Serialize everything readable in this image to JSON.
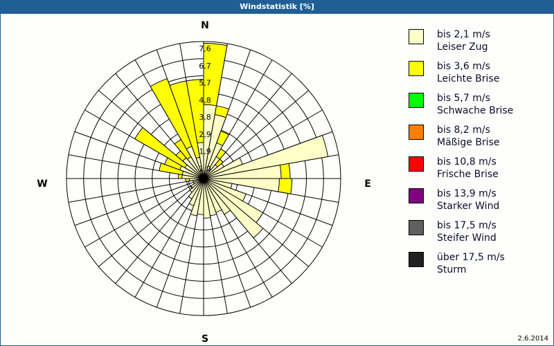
{
  "title": "Windstatistik [%]",
  "date": "2.6.2014",
  "compass": {
    "n": "N",
    "e": "E",
    "s": "S",
    "w": "W"
  },
  "legend": [
    {
      "line1": "bis 2,1 m/s",
      "line2": "Leiser Zug",
      "color": "#ffffc8"
    },
    {
      "line1": "bis 3,6 m/s",
      "line2": "Leichte Brise",
      "color": "#ffff00"
    },
    {
      "line1": "bis 5,7 m/s",
      "line2": "Schwache Brise",
      "color": "#00ff00"
    },
    {
      "line1": "bis 8,2 m/s",
      "line2": "Mäßige Brise",
      "color": "#ff8000"
    },
    {
      "line1": "bis 10,8 m/s",
      "line2": "Frische Brise",
      "color": "#ff0000"
    },
    {
      "line1": "bis 13,9 m/s",
      "line2": "Starker Wind",
      "color": "#800080"
    },
    {
      "line1": "bis 17,5 m/s",
      "line2": "Steifer Wind",
      "color": "#606060"
    },
    {
      "line1": "über 17,5 m/s",
      "line2": "Sturm",
      "color": "#202020"
    }
  ],
  "chart_data": {
    "type": "wind-rose",
    "title": "Windstatistik [%]",
    "unit": "%",
    "ring_labels": [
      "1,0",
      "1,9",
      "2,9",
      "3,8",
      "4,8",
      "5,7",
      "6,7",
      "7,6"
    ],
    "rmax": 7.6,
    "sector_width_deg": 10,
    "series": [
      "bis 2,1 m/s",
      "bis 3,6 m/s"
    ],
    "sectors": [
      {
        "dir": 0,
        "light": 4.1,
        "total": 7.5
      },
      {
        "dir": 10,
        "light": 3.6,
        "total": 4.1
      },
      {
        "dir": 20,
        "light": 2.1,
        "total": 2.8
      },
      {
        "dir": 30,
        "light": 1.4,
        "total": 1.9
      },
      {
        "dir": 40,
        "light": 1.0,
        "total": 1.4
      },
      {
        "dir": 50,
        "light": 1.3,
        "total": 1.3
      },
      {
        "dir": 60,
        "light": 2.3,
        "total": 2.3
      },
      {
        "dir": 70,
        "light": 7.0,
        "total": 7.0
      },
      {
        "dir": 80,
        "light": 4.3,
        "total": 4.8
      },
      {
        "dir": 90,
        "light": 4.2,
        "total": 4.9
      },
      {
        "dir": 100,
        "light": 1.6,
        "total": 1.6
      },
      {
        "dir": 110,
        "light": 2.5,
        "total": 2.5
      },
      {
        "dir": 120,
        "light": 3.8,
        "total": 3.8
      },
      {
        "dir": 130,
        "light": 4.3,
        "total": 4.3
      },
      {
        "dir": 140,
        "light": 2.3,
        "total": 2.3
      },
      {
        "dir": 150,
        "light": 2.0,
        "total": 2.0
      },
      {
        "dir": 160,
        "light": 2.1,
        "total": 2.1
      },
      {
        "dir": 170,
        "light": 2.2,
        "total": 2.2
      },
      {
        "dir": 180,
        "light": 2.0,
        "total": 2.0
      },
      {
        "dir": 190,
        "light": 2.1,
        "total": 2.1
      },
      {
        "dir": 200,
        "light": 1.6,
        "total": 1.6
      },
      {
        "dir": 210,
        "light": 1.3,
        "total": 1.3
      },
      {
        "dir": 220,
        "light": 1.0,
        "total": 1.0
      },
      {
        "dir": 230,
        "light": 0.8,
        "total": 0.8
      },
      {
        "dir": 240,
        "light": 0.6,
        "total": 0.6
      },
      {
        "dir": 250,
        "light": 0.6,
        "total": 0.6
      },
      {
        "dir": 260,
        "light": 0.8,
        "total": 1.0
      },
      {
        "dir": 270,
        "light": 1.2,
        "total": 1.4
      },
      {
        "dir": 280,
        "light": 1.2,
        "total": 2.5
      },
      {
        "dir": 290,
        "light": 1.4,
        "total": 2.3
      },
      {
        "dir": 300,
        "light": 1.2,
        "total": 4.4
      },
      {
        "dir": 310,
        "light": 1.5,
        "total": 2.0
      },
      {
        "dir": 320,
        "light": 1.4,
        "total": 2.5
      },
      {
        "dir": 330,
        "light": 1.9,
        "total": 5.9
      },
      {
        "dir": 340,
        "light": 1.2,
        "total": 5.5
      },
      {
        "dir": 350,
        "light": 2.0,
        "total": 5.5
      }
    ]
  }
}
